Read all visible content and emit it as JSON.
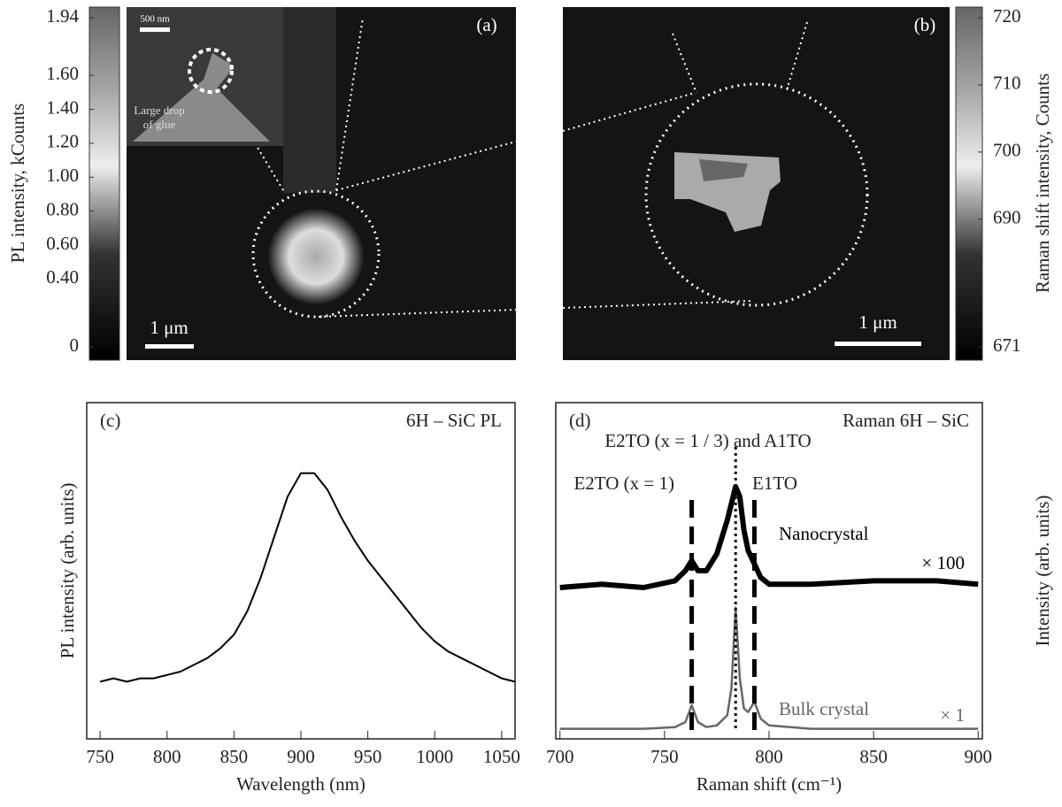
{
  "chart_data": [
    {
      "type": "heatmap",
      "panel_label": "(a)",
      "scale_bar": "1 μm",
      "inset_scale_bar": "500 nm",
      "inset_annotation": [
        "Large drop",
        "of glue"
      ],
      "colorbar_label": "PL intensity, kCounts",
      "ylim": [
        0,
        1.94
      ],
      "yticks": [
        1.94,
        {
          "value": 1.6,
          "label": "1.60"
        },
        {
          "value": 1.4,
          "label": "1.40"
        },
        {
          "value": 1.2,
          "label": "1.20"
        },
        {
          "value": 1.0,
          "label": "1.00"
        },
        {
          "value": 0.8,
          "label": "0.80"
        },
        {
          "value": 0.6,
          "label": "0.60"
        },
        {
          "value": 0.4,
          "label": "0.40"
        },
        0
      ]
    },
    {
      "type": "heatmap",
      "panel_label": "(b)",
      "scale_bar": "1 μm",
      "colorbar_label": "Raman shift intensity, Counts",
      "ylim": [
        671,
        720
      ],
      "yticks": [
        720,
        710,
        700,
        690,
        671
      ]
    },
    {
      "type": "line",
      "panel_label": "(c)",
      "title": "6H – SiC PL",
      "x_label": "Wavelength (nm)",
      "y_label": "PL intensity (arb. units)",
      "xlim": [
        740,
        1060
      ],
      "ylim": [
        0,
        1
      ],
      "xticks": [
        750,
        800,
        850,
        900,
        950,
        1000,
        1050
      ],
      "color": "#000000",
      "x": [
        750,
        760,
        770,
        780,
        790,
        800,
        810,
        820,
        830,
        840,
        850,
        860,
        870,
        880,
        890,
        900,
        910,
        920,
        930,
        940,
        950,
        960,
        970,
        980,
        990,
        1000,
        1010,
        1020,
        1030,
        1040,
        1050,
        1060
      ],
      "values": [
        0.17,
        0.18,
        0.17,
        0.18,
        0.18,
        0.19,
        0.2,
        0.22,
        0.24,
        0.27,
        0.31,
        0.38,
        0.48,
        0.6,
        0.72,
        0.79,
        0.79,
        0.74,
        0.66,
        0.59,
        0.53,
        0.48,
        0.43,
        0.38,
        0.33,
        0.29,
        0.26,
        0.24,
        0.22,
        0.2,
        0.18,
        0.17
      ]
    },
    {
      "type": "line",
      "panel_label": "(d)",
      "title": "Raman 6H – SiC",
      "x_label": "Raman shift (cm⁻¹)",
      "y_label": "Intensity (arb. units)",
      "xlim": [
        698,
        902
      ],
      "ylim": [
        0,
        1
      ],
      "xticks": [
        700,
        750,
        800,
        850,
        900
      ],
      "x": [
        700,
        720,
        740,
        755,
        760,
        763,
        766,
        770,
        775,
        780,
        782,
        784,
        786,
        788,
        790,
        793,
        796,
        800,
        820,
        850,
        880,
        900
      ],
      "series": [
        {
          "name": "Nanocrystal",
          "factor": "× 100",
          "color": "#000000",
          "values": [
            0.45,
            0.46,
            0.45,
            0.47,
            0.5,
            0.53,
            0.5,
            0.5,
            0.55,
            0.65,
            0.7,
            0.75,
            0.72,
            0.62,
            0.56,
            0.52,
            0.48,
            0.46,
            0.46,
            0.47,
            0.47,
            0.46
          ]
        },
        {
          "name": "Bulk crystal",
          "factor": "× 1",
          "color": "#666666",
          "values": [
            0.03,
            0.03,
            0.03,
            0.035,
            0.05,
            0.1,
            0.05,
            0.035,
            0.04,
            0.07,
            0.15,
            0.39,
            0.18,
            0.09,
            0.08,
            0.11,
            0.06,
            0.04,
            0.03,
            0.03,
            0.03,
            0.03
          ]
        }
      ],
      "peak_lines": [
        {
          "x": 763,
          "label": "E2TO (x = 1)"
        },
        {
          "x": 784,
          "label": "E2TO (x = 1 / 3) and A1TO"
        },
        {
          "x": 793,
          "label": "E1TO"
        }
      ]
    }
  ]
}
